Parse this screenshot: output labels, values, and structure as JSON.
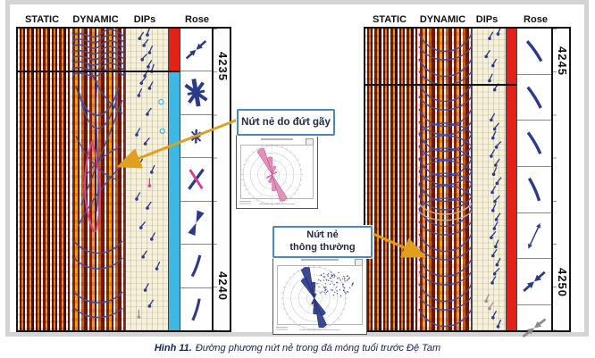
{
  "colors": {
    "rose_navy": "#2b3a8c",
    "pink": "#d4418e",
    "red_flag": "#e32119",
    "cyan_flag": "#3db7e4",
    "curve_blue": "#4449a0",
    "curve_gray": "#b9b9b9",
    "arrow_yellow": "#e0a01e",
    "callout_border": "#4a86c8",
    "dips_bg": "#f6f1dd",
    "caption_color": "#15245c",
    "gray_marker": "#979797"
  },
  "panels": [
    {
      "headers": [
        "STATIC",
        "DYNAMIC",
        "DIPs",
        "Rose"
      ],
      "depth_labels": [
        {
          "text": "4235"
        },
        {
          "text": "4240"
        }
      ],
      "colorbar": [
        {
          "name": "fault-zone-flag",
          "color": "#e32119",
          "frac": 0.14
        },
        {
          "name": "fracture-interval-flag",
          "color": "#3db7e4",
          "frac": 0.86
        }
      ],
      "rose_cells": [
        {
          "glyph": "double-arrow",
          "angle": 48
        },
        {
          "glyph": "star",
          "angle": 0
        },
        {
          "glyph": "star",
          "angle": 12,
          "scale": 0.5
        },
        {
          "glyph": "x2",
          "angle": 0,
          "color2": "#d4418e"
        },
        {
          "glyph": "bowtie",
          "angle": 22
        },
        {
          "glyph": "line",
          "angle": 20
        },
        {
          "glyph": "line",
          "angle": 17
        }
      ],
      "tadpoles": [
        [
          0.32,
          0.03,
          35
        ],
        [
          0.5,
          0.018,
          20
        ],
        [
          0.42,
          0.053,
          40
        ],
        [
          0.55,
          0.077,
          25
        ],
        [
          0.38,
          0.1,
          45
        ],
        [
          0.52,
          0.124,
          30
        ],
        [
          0.44,
          0.154,
          35
        ],
        [
          0.6,
          0.139,
          20
        ],
        [
          0.36,
          0.178,
          40
        ],
        [
          0.55,
          0.195,
          30
        ],
        [
          0.3,
          0.219,
          25
        ],
        [
          0.5,
          0.281,
          35
        ],
        [
          0.25,
          0.349,
          30
        ],
        [
          0.45,
          0.379,
          40
        ],
        [
          0.3,
          0.45,
          35
        ],
        [
          0.6,
          0.473,
          25
        ],
        [
          0.25,
          0.562,
          30
        ],
        [
          0.5,
          0.592,
          35
        ],
        [
          0.35,
          0.657,
          40
        ],
        [
          0.6,
          0.695,
          30
        ],
        [
          0.4,
          0.754,
          35
        ],
        [
          0.72,
          0.793,
          25
        ],
        [
          0.45,
          0.864,
          30
        ],
        [
          0.55,
          0.917,
          35
        ],
        [
          0.3,
          0.953,
          0,
          "#979797"
        ],
        [
          0.82,
          0.243,
          0,
          "circle"
        ],
        [
          0.85,
          0.34,
          0,
          "circle"
        ],
        [
          0.55,
          0.518,
          0,
          "#d4418e"
        ]
      ]
    },
    {
      "headers": [
        "STATIC",
        "DYNAMIC",
        "DIPs",
        "Rose"
      ],
      "depth_labels": [
        {
          "text": "4245"
        },
        {
          "text": "4250"
        }
      ],
      "colorbar": [
        {
          "name": "fault-zone-flag",
          "color": "#e32119",
          "frac": 1.0
        }
      ],
      "rose_cells": [
        {
          "glyph": "line",
          "angle": -35
        },
        {
          "glyph": "line",
          "angle": -32
        },
        {
          "glyph": "line",
          "angle": -30
        },
        {
          "glyph": "line",
          "angle": -24
        },
        {
          "glyph": "thin-arrow",
          "angle": 25
        },
        {
          "glyph": "double-arrow",
          "angle": 48
        },
        {
          "glyph": "double-arrow",
          "angle": 52,
          "color": "#8a8a8a"
        }
      ],
      "tadpoles": [
        [
          0.5,
          0.03,
          30
        ],
        [
          0.75,
          0.015,
          25
        ],
        [
          0.4,
          0.09,
          35
        ],
        [
          0.6,
          0.12,
          30
        ],
        [
          0.5,
          0.17,
          25
        ],
        [
          0.65,
          0.2,
          35
        ],
        [
          0.55,
          0.3,
          30
        ],
        [
          0.65,
          0.33,
          40
        ],
        [
          0.6,
          0.36,
          25
        ],
        [
          0.7,
          0.39,
          45
        ],
        [
          0.55,
          0.42,
          30
        ],
        [
          0.68,
          0.45,
          35
        ],
        [
          0.62,
          0.48,
          25
        ],
        [
          0.72,
          0.51,
          40
        ],
        [
          0.58,
          0.54,
          30
        ],
        [
          0.66,
          0.57,
          45
        ],
        [
          0.6,
          0.6,
          25
        ],
        [
          0.7,
          0.63,
          35
        ],
        [
          0.64,
          0.66,
          30
        ],
        [
          0.55,
          0.69,
          40
        ],
        [
          0.68,
          0.72,
          25
        ],
        [
          0.6,
          0.75,
          35
        ],
        [
          0.72,
          0.78,
          30
        ],
        [
          0.65,
          0.81,
          45
        ],
        [
          0.58,
          0.84,
          30
        ],
        [
          0.4,
          0.9,
          25,
          "#979797"
        ],
        [
          0.5,
          0.925,
          35,
          "#979797"
        ],
        [
          0.6,
          0.955,
          30
        ],
        [
          0.75,
          0.985,
          25
        ]
      ]
    }
  ],
  "callouts": [
    {
      "text": "Nứt nẻ do đứt gãy"
    },
    {
      "line1": "Nứt nẻ",
      "line2": "thông thường"
    }
  ],
  "insets": [
    {
      "name": "fault-fracture-rose",
      "petal_color": "#e08ab4",
      "petal_stroke": "#c2498a",
      "petals": [
        [
          335,
          0.95
        ],
        [
          352,
          0.6
        ],
        [
          155,
          0.95
        ],
        [
          172,
          0.55
        ],
        [
          18,
          0.3
        ],
        [
          198,
          0.28
        ],
        [
          60,
          0.18
        ],
        [
          240,
          0.2
        ]
      ],
      "scatter": false
    },
    {
      "name": "common-fracture-rose",
      "petal_color": "#2b3a8c",
      "petal_stroke": "#1c2766",
      "petals": [
        [
          343,
          1.0
        ],
        [
          330,
          0.7
        ],
        [
          356,
          0.5
        ],
        [
          163,
          0.95
        ],
        [
          150,
          0.6
        ],
        [
          176,
          0.5
        ],
        [
          200,
          0.2
        ],
        [
          20,
          0.15
        ]
      ],
      "scatter": true
    }
  ],
  "caption": {
    "label": "Hình 11.",
    "text": "Đường phương nứt nẻ trong đá móng tuổi trước Đệ Tam"
  },
  "chart_data": [
    {
      "type": "well-log",
      "panel": "left",
      "tracks": [
        "STATIC",
        "DYNAMIC",
        "DIPs",
        "Rose"
      ],
      "depth_ticks": [
        4235,
        4240
      ],
      "interval_flag_colors": [
        "#e32119",
        "#3db7e4"
      ],
      "rose_cell_count": 7,
      "notes": "borehole image log with sinusoid fracture picks, dip tadpoles and per-interval rose symbols; fault-related fracture zone flagged red at top, conventional fractured interval flagged cyan below"
    },
    {
      "type": "well-log",
      "panel": "right",
      "tracks": [
        "STATIC",
        "DYNAMIC",
        "DIPs",
        "Rose"
      ],
      "depth_ticks": [
        4245,
        4250
      ],
      "interval_flag_colors": [
        "#e32119"
      ],
      "rose_cell_count": 7,
      "notes": "borehole image log; whole interval flagged red; rose symbols show NW-SE striking fractures"
    },
    {
      "type": "rose",
      "title": "Nứt nẻ do đứt gãy",
      "color": "#e08ab4",
      "petals_azimuth_deg": [
        335,
        352,
        155,
        172,
        18,
        198,
        60,
        240
      ],
      "petal_lengths": [
        0.95,
        0.6,
        0.95,
        0.55,
        0.3,
        0.28,
        0.18,
        0.2
      ],
      "legend_position": "none",
      "grid": true
    },
    {
      "type": "rose",
      "title": "Nứt nẻ thông thường",
      "color": "#2b3a8c",
      "petals_azimuth_deg": [
        343,
        330,
        356,
        163,
        150,
        176,
        200,
        20
      ],
      "petal_lengths": [
        1.0,
        0.7,
        0.5,
        0.95,
        0.6,
        0.5,
        0.2,
        0.15
      ],
      "scatter_cluster": "dense point cloud in NE quadrant",
      "legend_position": "none",
      "grid": true
    }
  ]
}
